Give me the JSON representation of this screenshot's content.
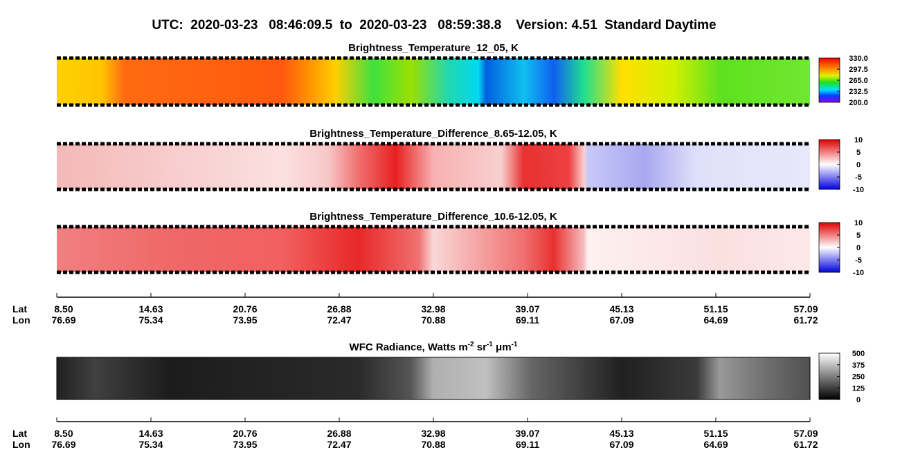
{
  "title": "UTC:  2020-03-23   08:46:09.5  to  2020-03-23   08:59:38.8    Version: 4.51  Standard Daytime",
  "panels": [
    {
      "title": [
        "Brightness_Temperature_12_05, K"
      ],
      "colorbar": {
        "lim": [
          200,
          330
        ],
        "ticks": [
          {
            "value": 330,
            "label": "330.0"
          },
          297.5,
          {
            "value": 265,
            "label": "265.0"
          },
          232.5,
          {
            "value": 200,
            "label": "200.0"
          }
        ]
      }
    },
    {
      "title": [
        "Brightness_Temperature_Difference_8.65-12.05, K"
      ],
      "colorbar": {
        "lim": [
          -10,
          10
        ],
        "ticks": [
          10,
          5,
          0,
          -5,
          -10
        ]
      }
    },
    {
      "title": [
        "Brightness_Temperature_Difference_10.6-12.05, K"
      ],
      "colorbar": {
        "lim": [
          -10,
          10
        ],
        "ticks": [
          10,
          5,
          0,
          -5,
          -10
        ]
      }
    },
    {
      "title": [
        "WFC Radiance, Watts m",
        "-2",
        " sr",
        "-1",
        " μm",
        "-1"
      ],
      "colorbar": {
        "lim": [
          0,
          500
        ],
        "ticks": [
          500,
          375,
          250,
          125,
          0
        ]
      }
    }
  ],
  "lat_lon_axes": [
    {
      "lat_label": "Lat",
      "lon_label": "Lon",
      "lat": [
        {
          "value": 8.5,
          "label": "8.50"
        },
        14.63,
        20.76,
        26.88,
        32.98,
        39.07,
        45.13,
        51.15,
        57.09
      ],
      "lon": [
        76.69,
        75.34,
        73.95,
        72.47,
        70.88,
        69.11,
        67.09,
        64.69,
        61.72
      ]
    },
    {
      "lat_label": "Lat",
      "lon_label": "Lon",
      "lat": [
        {
          "value": 8.5,
          "label": "8.50"
        },
        14.63,
        20.76,
        26.88,
        32.98,
        39.07,
        45.13,
        51.15,
        57.09
      ],
      "lon": [
        76.69,
        75.34,
        73.95,
        72.47,
        70.88,
        69.11,
        67.09,
        64.69,
        61.72
      ]
    }
  ]
}
